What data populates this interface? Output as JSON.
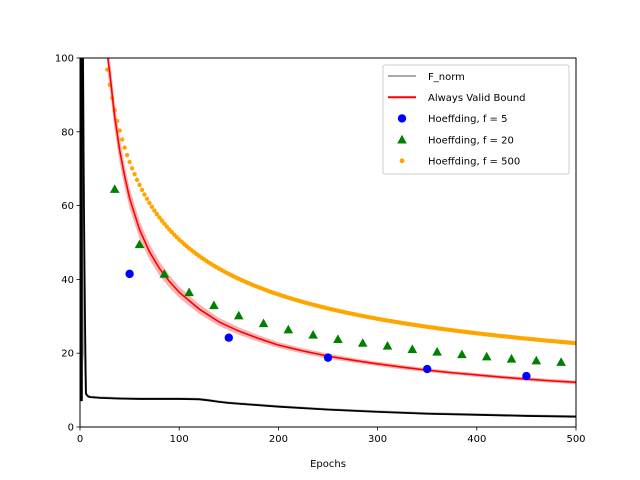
{
  "chart_data": {
    "type": "line",
    "title": "",
    "xlabel": "Epochs",
    "ylabel": "",
    "xlim": [
      0,
      500
    ],
    "ylim": [
      0,
      100
    ],
    "xticks": [
      0,
      100,
      200,
      300,
      400,
      500
    ],
    "yticks": [
      0,
      20,
      40,
      60,
      80,
      100
    ],
    "grid": false,
    "legend_position": "top-right",
    "series": [
      {
        "name": "F_norm",
        "kind": "line",
        "color": "#aaaaaa",
        "x": [
          3,
          4,
          5,
          6,
          8,
          10,
          20,
          40,
          60,
          80,
          100,
          120,
          130,
          140,
          150,
          175,
          200,
          250,
          300,
          350,
          400,
          450,
          500
        ],
        "y": [
          100,
          20,
          18,
          9,
          8.5,
          8.2,
          8.0,
          7.8,
          7.7,
          7.7,
          7.7,
          7.6,
          7.3,
          6.9,
          6.6,
          6.1,
          5.6,
          4.8,
          4.2,
          3.7,
          3.4,
          3.1,
          2.9
        ]
      },
      {
        "name": "F_norm (black)",
        "kind": "line",
        "color": "#000000",
        "x": [
          3,
          4,
          5,
          6,
          8,
          10,
          20,
          40,
          60,
          80,
          100,
          120,
          130,
          140,
          150,
          175,
          200,
          250,
          300,
          350,
          400,
          450,
          500
        ],
        "y": [
          100,
          60,
          30,
          9,
          8.3,
          8.1,
          7.9,
          7.7,
          7.6,
          7.6,
          7.6,
          7.5,
          7.2,
          6.8,
          6.5,
          6.0,
          5.5,
          4.7,
          4.1,
          3.6,
          3.3,
          3.0,
          2.8
        ]
      },
      {
        "name": "Always Valid Bound",
        "kind": "line",
        "color": "#ff0000",
        "band_color": "#f08080",
        "x": [
          28,
          30,
          35,
          40,
          45,
          50,
          60,
          70,
          80,
          90,
          100,
          120,
          140,
          160,
          180,
          200,
          225,
          250,
          275,
          300,
          325,
          350,
          375,
          400,
          425,
          450,
          475,
          500
        ],
        "y": [
          100,
          96,
          84,
          75,
          68,
          62,
          53.5,
          47.5,
          43,
          39.5,
          36.5,
          32,
          28.5,
          26,
          24,
          22.2,
          20.6,
          19.2,
          18.1,
          17.1,
          16.2,
          15.4,
          14.7,
          14.1,
          13.5,
          13.0,
          12.5,
          12.1
        ],
        "band": [
          4.5,
          4.2,
          3.8,
          3.4,
          3.1,
          2.8,
          2.4,
          2.1,
          1.9,
          1.7,
          1.5,
          1.3,
          1.1,
          1.0,
          0.9,
          0.8,
          0.7,
          0.7,
          0.6,
          0.6,
          0.6,
          0.5,
          0.5,
          0.5,
          0.5,
          0.5,
          0.5,
          0.5
        ]
      },
      {
        "name": "Hoeffding, f = 5",
        "kind": "scatter",
        "marker": "circle",
        "color": "#0000ff",
        "x": [
          50,
          150,
          250,
          350,
          450
        ],
        "y": [
          41.5,
          24.2,
          18.8,
          15.7,
          13.8
        ]
      },
      {
        "name": "Hoeffding, f = 20",
        "kind": "scatter",
        "marker": "triangle",
        "color": "#008000",
        "x": [
          35,
          60,
          85,
          110,
          135,
          160,
          185,
          210,
          235,
          260,
          285,
          310,
          335,
          360,
          385,
          410,
          435,
          460,
          485
        ],
        "y": [
          64.5,
          49.5,
          41.5,
          36.5,
          33,
          30.2,
          28.1,
          26.4,
          25,
          23.8,
          22.8,
          22,
          21.1,
          20.4,
          19.7,
          19.1,
          18.5,
          18,
          17.6
        ]
      },
      {
        "name": "Hoeffding, f = 500",
        "kind": "dense_scatter",
        "marker": "dot",
        "color": "#ffa500",
        "formula_note_hidden": true,
        "start": 25,
        "end": 500,
        "step": 2.5,
        "coef": 508,
        "exponent": 0.5
      }
    ],
    "legend": [
      {
        "label": "F_norm",
        "color": "#aaaaaa",
        "symbol": "line"
      },
      {
        "label": "Always Valid Bound",
        "color": "#ff0000",
        "symbol": "line"
      },
      {
        "label": "Hoeffding, f = 5",
        "color": "#0000ff",
        "symbol": "circle"
      },
      {
        "label": "Hoeffding, f = 20",
        "color": "#008000",
        "symbol": "triangle"
      },
      {
        "label": "Hoeffding, f = 500",
        "color": "#ffa500",
        "symbol": "dot"
      }
    ]
  }
}
